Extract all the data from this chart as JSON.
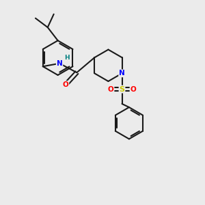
{
  "background_color": "#ebebeb",
  "bond_color": "#1a1a1a",
  "bond_width": 1.5,
  "atom_colors": {
    "N": "#0000ff",
    "O": "#ff0000",
    "S": "#cccc00",
    "H": "#008080",
    "C": "#1a1a1a"
  },
  "figsize": [
    3.0,
    3.0
  ],
  "dpi": 100,
  "xlim": [
    0,
    10
  ],
  "ylim": [
    0,
    10
  ]
}
